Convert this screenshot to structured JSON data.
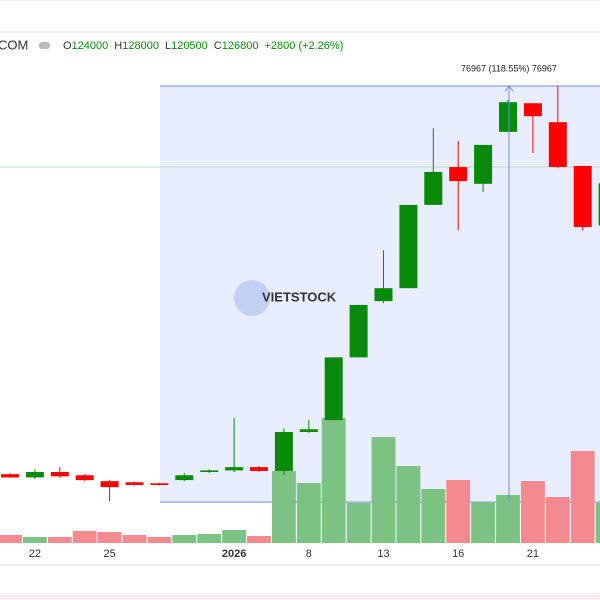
{
  "header": {
    "symbol": "COM",
    "ohlc": [
      {
        "key": "O",
        "value": 124000
      },
      {
        "key": "H",
        "value": 128000
      },
      {
        "key": "L",
        "value": 120500
      },
      {
        "key": "C",
        "value": 126800
      }
    ],
    "change": "+2800 (+2.26%)"
  },
  "chart_data": {
    "type": "candlestick",
    "watermark": "VIETSTOCK",
    "categories": [
      null,
      "22",
      null,
      null,
      "25",
      null,
      null,
      null,
      null,
      "2026",
      null,
      null,
      "8",
      null,
      null,
      "13",
      null,
      null,
      "16",
      null,
      null,
      "21",
      null,
      null,
      null
    ],
    "open": [
      70100,
      69500,
      70500,
      69900,
      68800,
      68600,
      68400,
      69000,
      70500,
      70800,
      71400,
      70700,
      77900,
      80100,
      91700,
      102100,
      104500,
      119900,
      126900,
      123800,
      133400,
      138700,
      135200,
      127100,
      116100
    ],
    "high": [
      70300,
      71000,
      71400,
      70100,
      69000,
      68700,
      68500,
      70300,
      71000,
      80500,
      71600,
      78600,
      80100,
      91700,
      101400,
      111500,
      119900,
      134100,
      131700,
      131000,
      139300,
      138700,
      141900,
      127100,
      123900
    ],
    "low": [
      69400,
      69200,
      69400,
      68800,
      65100,
      68000,
      68000,
      68800,
      70300,
      70500,
      70500,
      69900,
      77700,
      80100,
      91700,
      101700,
      104500,
      119900,
      115200,
      122300,
      133400,
      129500,
      126700,
      115200,
      116100
    ],
    "close": [
      69500,
      70500,
      69700,
      69000,
      67700,
      68100,
      68100,
      69900,
      70800,
      71400,
      70700,
      77900,
      78400,
      91700,
      101400,
      104500,
      119900,
      126000,
      124300,
      131000,
      138900,
      136300,
      126900,
      115800,
      123900
    ],
    "volume": [
      8,
      6,
      6,
      12,
      11,
      8,
      6,
      8,
      9,
      13,
      7,
      72,
      60,
      125,
      40,
      106,
      77,
      54,
      63,
      41,
      48,
      62,
      46,
      92,
      40
    ],
    "ylim": [
      53300,
      150400
    ],
    "vlim": [
      0,
      130
    ],
    "up_color": "#0a8a0a",
    "down_color": "#ff0000",
    "up_volume_color": "#7cc283",
    "down_volume_color": "#f28a8f",
    "measure": {
      "label": "76967 (118.55%) 76967",
      "from": 64923,
      "change": 76967
    }
  }
}
